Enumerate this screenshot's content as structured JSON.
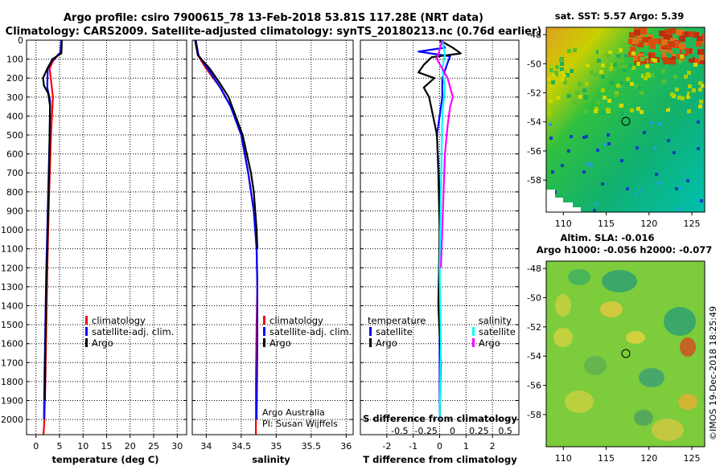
{
  "title": {
    "line1": "Argo profile: csiro 7900615_78 13-Feb-2018 53.81S 117.28E (NRT data)",
    "line2": "Climatology: CARS2009. Satellite-adjusted climatology: synTS_20180213.nc (0.76d earlier)"
  },
  "colors": {
    "climatology": "#ff0000",
    "satellite": "#0000ff",
    "argo": "#000000",
    "temp_satellite": "#0000ff",
    "sal_satellite": "#00ffff",
    "sal_argo": "#ff00ff"
  },
  "chart_data": [
    {
      "id": "temperature",
      "type": "line",
      "xlabel": "temperature (deg C)",
      "ylabel": "",
      "xlim": [
        -2,
        32
      ],
      "ylim": [
        2080,
        0
      ],
      "xticks": [
        0,
        5,
        10,
        15,
        20,
        25,
        30
      ],
      "yticks": [
        0,
        100,
        200,
        300,
        400,
        500,
        600,
        700,
        800,
        900,
        1000,
        1100,
        1200,
        1300,
        1400,
        1500,
        1600,
        1700,
        1800,
        1900,
        2000
      ],
      "legend": [
        "climatology",
        "satellite-adj. clim.",
        "Argo"
      ],
      "series": [
        {
          "name": "climatology",
          "color_key": "climatology",
          "x": [
            5.4,
            5.3,
            3.6,
            2.9,
            3.6,
            3.2,
            2.8,
            2.6,
            2.4,
            2.2,
            2.0,
            1.8,
            1.6
          ],
          "y": [
            0,
            60,
            110,
            150,
            300,
            500,
            800,
            1000,
            1200,
            1500,
            1800,
            2000,
            2080
          ]
        },
        {
          "name": "satellite-adj. clim.",
          "color_key": "satellite",
          "x": [
            5.4,
            5.2,
            3.4,
            2.5,
            2.4,
            3.0,
            2.9,
            2.6,
            2.4,
            2.2,
            2.0,
            1.8,
            1.7
          ],
          "y": [
            0,
            65,
            110,
            150,
            250,
            320,
            500,
            800,
            1000,
            1200,
            1500,
            1800,
            2000
          ]
        },
        {
          "name": "Argo",
          "color_key": "argo",
          "x": [
            5.5,
            5.4,
            3.5,
            2.4,
            1.5,
            1.7,
            2.6,
            3.0,
            2.9,
            2.8,
            2.6,
            2.4,
            2.2,
            2.0,
            1.9
          ],
          "y": [
            0,
            70,
            100,
            150,
            200,
            240,
            280,
            350,
            500,
            700,
            900,
            1100,
            1300,
            1600,
            1900
          ]
        }
      ]
    },
    {
      "id": "salinity",
      "type": "line",
      "xlabel": "salinity",
      "ylabel": "",
      "xlim": [
        33.8,
        36.1
      ],
      "ylim": [
        2080,
        0
      ],
      "xticks": [
        34,
        34.5,
        35,
        35.5,
        36
      ],
      "legend": [
        "climatology",
        "satellite-adj. clim.",
        "Argo"
      ],
      "annotations": [
        "Argo Australia",
        "PI: Susan Wijffels"
      ],
      "series": [
        {
          "name": "climatology",
          "color_key": "climatology",
          "x": [
            33.85,
            33.88,
            34.0,
            34.2,
            34.35,
            34.5,
            34.6,
            34.68,
            34.72,
            34.73,
            34.72,
            34.71,
            34.71
          ],
          "y": [
            0,
            80,
            150,
            250,
            350,
            500,
            700,
            900,
            1100,
            1300,
            1500,
            1800,
            2080
          ]
        },
        {
          "name": "satellite-adj. clim.",
          "color_key": "satellite",
          "x": [
            33.85,
            33.89,
            34.02,
            34.2,
            34.35,
            34.5,
            34.6,
            34.68,
            34.72,
            34.73,
            34.73,
            34.72
          ],
          "y": [
            0,
            80,
            150,
            250,
            350,
            500,
            700,
            900,
            1100,
            1300,
            1600,
            2000
          ]
        },
        {
          "name": "Argo",
          "color_key": "argo",
          "x": [
            33.84,
            33.88,
            34.05,
            34.2,
            34.32,
            34.42,
            34.52,
            34.58,
            34.64,
            34.68,
            34.7,
            34.72,
            34.73
          ],
          "y": [
            0,
            80,
            150,
            230,
            300,
            400,
            500,
            600,
            700,
            800,
            900,
            1000,
            1100
          ]
        }
      ]
    },
    {
      "id": "difference",
      "type": "line",
      "xlabel": "T difference from climatology",
      "top_xlabel": "S difference from climatology",
      "ylabel": "",
      "xlim": [
        -3,
        3
      ],
      "ylim": [
        2080,
        0
      ],
      "xticks": [
        -2,
        -1,
        0,
        1,
        2
      ],
      "top_xticks": [
        "-0.5",
        "-0.25",
        "0",
        "0.25",
        "0.5"
      ],
      "legend_temperature_header": "temperature",
      "legend_salinity_header": "salinity",
      "legend": [
        "satellite",
        "Argo",
        "satellite",
        "Argo"
      ],
      "series": [
        {
          "name": "T satellite",
          "color_key": "temp_satellite",
          "x": [
            0.0,
            0.2,
            -0.8,
            0.4,
            0.3,
            0.1,
            0.1,
            -0.1,
            0.0,
            0.0,
            0.0,
            0.0
          ],
          "y": [
            0,
            40,
            60,
            85,
            120,
            200,
            300,
            500,
            800,
            1200,
            1600,
            2000
          ]
        },
        {
          "name": "T Argo",
          "color_key": "argo",
          "x": [
            0.0,
            0.5,
            0.8,
            -0.3,
            -0.6,
            -0.8,
            -0.2,
            -0.6,
            -0.4,
            -0.1,
            -0.05,
            0.0,
            -0.05,
            0.05,
            0.0
          ],
          "y": [
            0,
            40,
            70,
            90,
            130,
            170,
            200,
            250,
            300,
            500,
            700,
            1000,
            1400,
            1700,
            2000
          ]
        },
        {
          "name": "S satellite",
          "color_key": "sal_satellite",
          "x": [
            0.1,
            0.2,
            0.1,
            0.2,
            0.1,
            0.05,
            0.0,
            0.05,
            0.0
          ],
          "y": [
            0,
            80,
            150,
            250,
            400,
            800,
            1200,
            1600,
            2000
          ]
        },
        {
          "name": "S Argo",
          "color_key": "sal_argo",
          "x": [
            0.1,
            -0.1,
            0.3,
            0.5,
            0.4,
            0.3,
            0.2,
            0.15,
            0.1,
            0.05
          ],
          "y": [
            0,
            100,
            200,
            300,
            350,
            450,
            600,
            800,
            1000,
            1200
          ]
        }
      ]
    },
    {
      "id": "sst-map",
      "type": "heatmap",
      "title": "sat. SST: 5.57 Argo: 5.39",
      "xticks": [
        110,
        115,
        120,
        125
      ],
      "yticks": [
        -48,
        -50,
        -52,
        -54,
        -56,
        -58
      ]
    },
    {
      "id": "sla-map",
      "type": "heatmap",
      "title": "Altim. SLA: -0.016",
      "subtitle": "Argo h1000: -0.056 h2000: -0.077",
      "xticks": [
        110,
        115,
        120,
        125
      ],
      "yticks": [
        -48,
        -50,
        -52,
        -54,
        -56,
        -58
      ]
    }
  ],
  "credit": "©IMOS 19-Dec-2018 18:25:49"
}
